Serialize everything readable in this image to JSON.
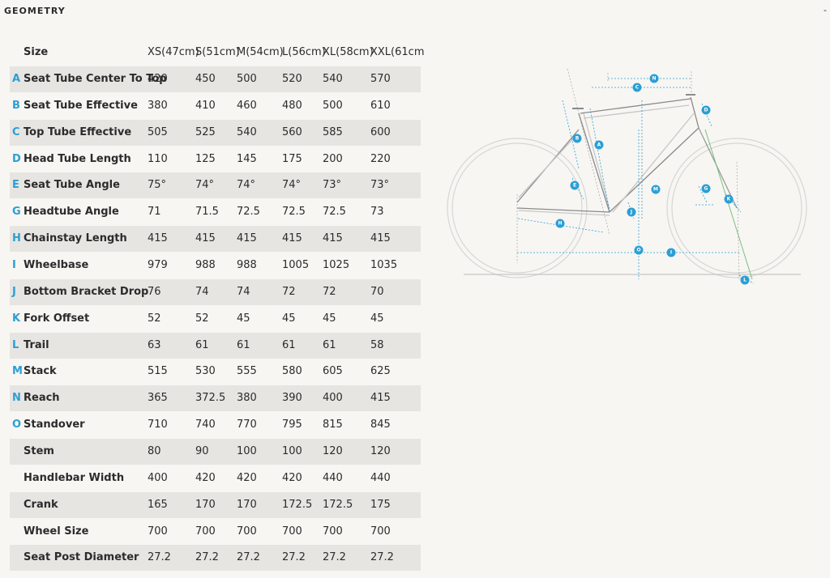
{
  "header": {
    "title": "GEOMETRY",
    "corner": "-"
  },
  "table": {
    "columns": [
      "Size",
      "XS(47cm)",
      "S(51cm)",
      "M(54cm)",
      "L(56cm)",
      "XL(58cm)",
      "XXL(61cm"
    ],
    "rows": [
      {
        "letter": "A",
        "name": "Seat Tube Center To Top",
        "values": [
          "420",
          "450",
          "500",
          "520",
          "540",
          "570"
        ]
      },
      {
        "letter": "B",
        "name": "Seat Tube Effective",
        "values": [
          "380",
          "410",
          "460",
          "480",
          "500",
          "610"
        ]
      },
      {
        "letter": "C",
        "name": "Top Tube Effective",
        "values": [
          "505",
          "525",
          "540",
          "560",
          "585",
          "600"
        ]
      },
      {
        "letter": "D",
        "name": "Head Tube Length",
        "values": [
          "110",
          "125",
          "145",
          "175",
          "200",
          "220"
        ]
      },
      {
        "letter": "E",
        "name": "Seat Tube Angle",
        "values": [
          "75°",
          "74°",
          "74°",
          "74°",
          "73°",
          "73°"
        ]
      },
      {
        "letter": "G",
        "name": "Headtube Angle",
        "values": [
          "71",
          "71.5",
          "72.5",
          "72.5",
          "72.5",
          "73"
        ]
      },
      {
        "letter": "H",
        "name": "Chainstay Length",
        "values": [
          "415",
          "415",
          "415",
          "415",
          "415",
          "415"
        ]
      },
      {
        "letter": "I",
        "name": "Wheelbase",
        "values": [
          "979",
          "988",
          "988",
          "1005",
          "1025",
          "1035"
        ]
      },
      {
        "letter": "J",
        "name": "Bottom Bracket Drop",
        "values": [
          "76",
          "74",
          "74",
          "72",
          "72",
          "70"
        ]
      },
      {
        "letter": "K",
        "name": "Fork Offset",
        "values": [
          "52",
          "52",
          "45",
          "45",
          "45",
          "45"
        ]
      },
      {
        "letter": "L",
        "name": "Trail",
        "values": [
          "63",
          "61",
          "61",
          "61",
          "61",
          "58"
        ]
      },
      {
        "letter": "M",
        "name": "Stack",
        "values": [
          "515",
          "530",
          "555",
          "580",
          "605",
          "625"
        ]
      },
      {
        "letter": "N",
        "name": "Reach",
        "values": [
          "365",
          "372.5",
          "380",
          "390",
          "400",
          "415"
        ]
      },
      {
        "letter": "O",
        "name": "Standover",
        "values": [
          "710",
          "740",
          "770",
          "795",
          "815",
          "845"
        ]
      },
      {
        "name": "Stem",
        "values": [
          "80",
          "90",
          "100",
          "100",
          "120",
          "120"
        ]
      },
      {
        "name": "Handlebar Width",
        "values": [
          "400",
          "420",
          "420",
          "420",
          "440",
          "440"
        ]
      },
      {
        "name": "Crank",
        "values": [
          "165",
          "170",
          "170",
          "172.5",
          "172.5",
          "175"
        ]
      },
      {
        "name": "Wheel Size",
        "values": [
          "700",
          "700",
          "700",
          "700",
          "700",
          "700"
        ]
      },
      {
        "name": "Seat Post Diameter",
        "values": [
          "27.2",
          "27.2",
          "27.2",
          "27.2",
          "27.2",
          "27.2"
        ]
      }
    ]
  },
  "diagram": {
    "labels": [
      "N",
      "C",
      "D",
      "B",
      "A",
      "M",
      "E",
      "G",
      "K",
      "J",
      "H",
      "O",
      "I",
      "L"
    ]
  }
}
